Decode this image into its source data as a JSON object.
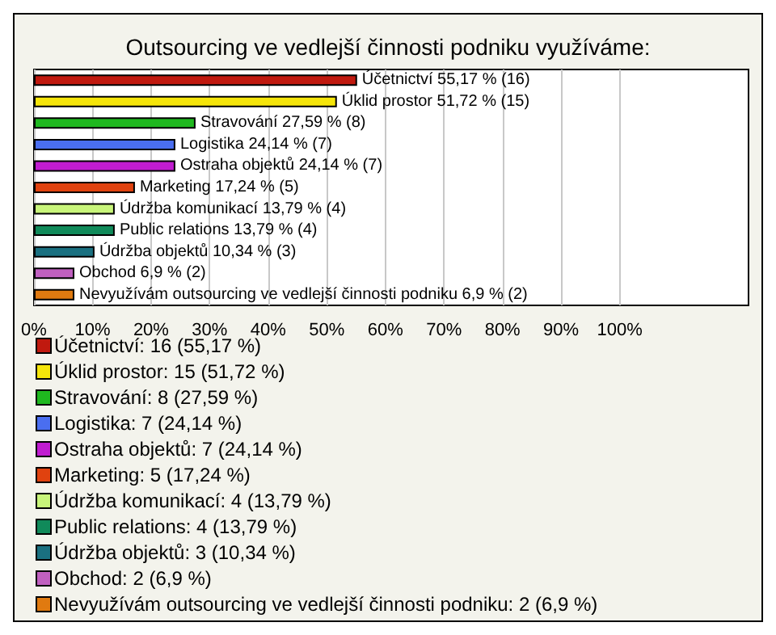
{
  "chart_data": {
    "type": "bar",
    "orientation": "horizontal",
    "stacked": true,
    "title": "Outsourcing ve vedlejší činnosti podniku využíváme:",
    "categories": [
      null,
      null,
      null,
      null,
      null,
      null,
      null,
      null,
      null,
      null,
      null
    ],
    "series": [
      {
        "name": "Účetnictví: 16 (55,17 %)",
        "color": "#c0190f",
        "values": [
          55.17,
          null,
          null,
          null,
          null,
          null,
          null,
          null,
          null,
          null,
          null
        ],
        "value_labels": [
          "Účetnictví 55,17 % (16)",
          null,
          null,
          null,
          null,
          null,
          null,
          null,
          null,
          null,
          null
        ]
      },
      {
        "name": "Úklid prostor: 15 (51,72 %)",
        "color": "#f5e50a",
        "values": [
          null,
          51.72,
          null,
          null,
          null,
          null,
          null,
          null,
          null,
          null,
          null
        ],
        "value_labels": [
          null,
          "Úklid prostor 51,72 % (15)",
          null,
          null,
          null,
          null,
          null,
          null,
          null,
          null,
          null
        ]
      },
      {
        "name": "Stravování: 8 (27,59 %)",
        "color": "#1fb81f",
        "values": [
          null,
          null,
          27.59,
          null,
          null,
          null,
          null,
          null,
          null,
          null,
          null
        ],
        "value_labels": [
          null,
          null,
          "Stravování 27,59 % (8)",
          null,
          null,
          null,
          null,
          null,
          null,
          null,
          null
        ]
      },
      {
        "name": "Logistika: 7 (24,14 %)",
        "color": "#4a6ef0",
        "values": [
          null,
          null,
          null,
          24.14,
          null,
          null,
          null,
          null,
          null,
          null,
          null
        ],
        "value_labels": [
          null,
          null,
          null,
          "Logistika 24,14 % (7)",
          null,
          null,
          null,
          null,
          null,
          null,
          null
        ]
      },
      {
        "name": "Ostraha objektů: 7 (24,14 %)",
        "color": "#c01cd0",
        "values": [
          null,
          null,
          null,
          null,
          24.14,
          null,
          null,
          null,
          null,
          null,
          null
        ],
        "value_labels": [
          null,
          null,
          null,
          null,
          "Ostraha objektů 24,14 % (7)",
          null,
          null,
          null,
          null,
          null,
          null
        ]
      },
      {
        "name": "Marketing: 5 (17,24 %)",
        "color": "#e0420f",
        "values": [
          null,
          null,
          null,
          null,
          null,
          17.24,
          null,
          null,
          null,
          null,
          null
        ],
        "value_labels": [
          null,
          null,
          null,
          null,
          null,
          "Marketing 17,24 % (5)",
          null,
          null,
          null,
          null,
          null
        ]
      },
      {
        "name": "Údržba komunikací: 4 (13,79 %)",
        "color": "#c8f57a",
        "values": [
          null,
          null,
          null,
          null,
          null,
          null,
          13.79,
          null,
          null,
          null,
          null
        ],
        "value_labels": [
          null,
          null,
          null,
          null,
          null,
          null,
          "Údržba komunikací 13,79 % (4)",
          null,
          null,
          null,
          null
        ]
      },
      {
        "name": "Public relations: 4 (13,79 %)",
        "color": "#108a5a",
        "values": [
          null,
          null,
          null,
          null,
          null,
          null,
          null,
          13.79,
          null,
          null,
          null
        ],
        "value_labels": [
          null,
          null,
          null,
          null,
          null,
          null,
          null,
          "Public relations 13,79 % (4)",
          null,
          null,
          null
        ]
      },
      {
        "name": "Údržba objektů: 3 (10,34 %)",
        "color": "#1a7080",
        "values": [
          null,
          null,
          null,
          null,
          null,
          null,
          null,
          null,
          10.34,
          null,
          null
        ],
        "value_labels": [
          null,
          null,
          null,
          null,
          null,
          null,
          null,
          null,
          "Údržba objektů 10,34 % (3)",
          null,
          null
        ]
      },
      {
        "name": "Obchod: 2 (6,9 %)",
        "color": "#c060c0",
        "values": [
          null,
          null,
          null,
          null,
          null,
          null,
          null,
          null,
          null,
          6.9,
          null
        ],
        "value_labels": [
          null,
          null,
          null,
          null,
          null,
          null,
          null,
          null,
          null,
          "Obchod 6,9 % (2)",
          null
        ]
      },
      {
        "name": "Nevyužívám outsourcing ve vedlejší činnosti podniku: 2 (6,9 %)",
        "color": "#e07a10",
        "values": [
          null,
          null,
          null,
          null,
          null,
          null,
          null,
          null,
          null,
          null,
          6.9
        ],
        "value_labels": [
          null,
          null,
          null,
          null,
          null,
          null,
          null,
          null,
          null,
          null,
          "Nevyužívám outsourcing ve vedlejší činnosti podniku 6,9 % (2)"
        ]
      }
    ],
    "xlim": [
      0,
      122
    ],
    "xticks": [
      {
        "value": 0,
        "label": "0%"
      },
      {
        "value": 10,
        "label": "10%"
      },
      {
        "value": 20,
        "label": "20%"
      },
      {
        "value": 30,
        "label": "30%"
      },
      {
        "value": 40,
        "label": "40%"
      },
      {
        "value": 50,
        "label": "50%"
      },
      {
        "value": 60,
        "label": "60%"
      },
      {
        "value": 70,
        "label": "70%"
      },
      {
        "value": 80,
        "label": "80%"
      },
      {
        "value": 90,
        "label": "90%"
      },
      {
        "value": 100,
        "label": "100%"
      }
    ],
    "grid": "x",
    "legend": "bottom",
    "tick_labels": "x"
  }
}
